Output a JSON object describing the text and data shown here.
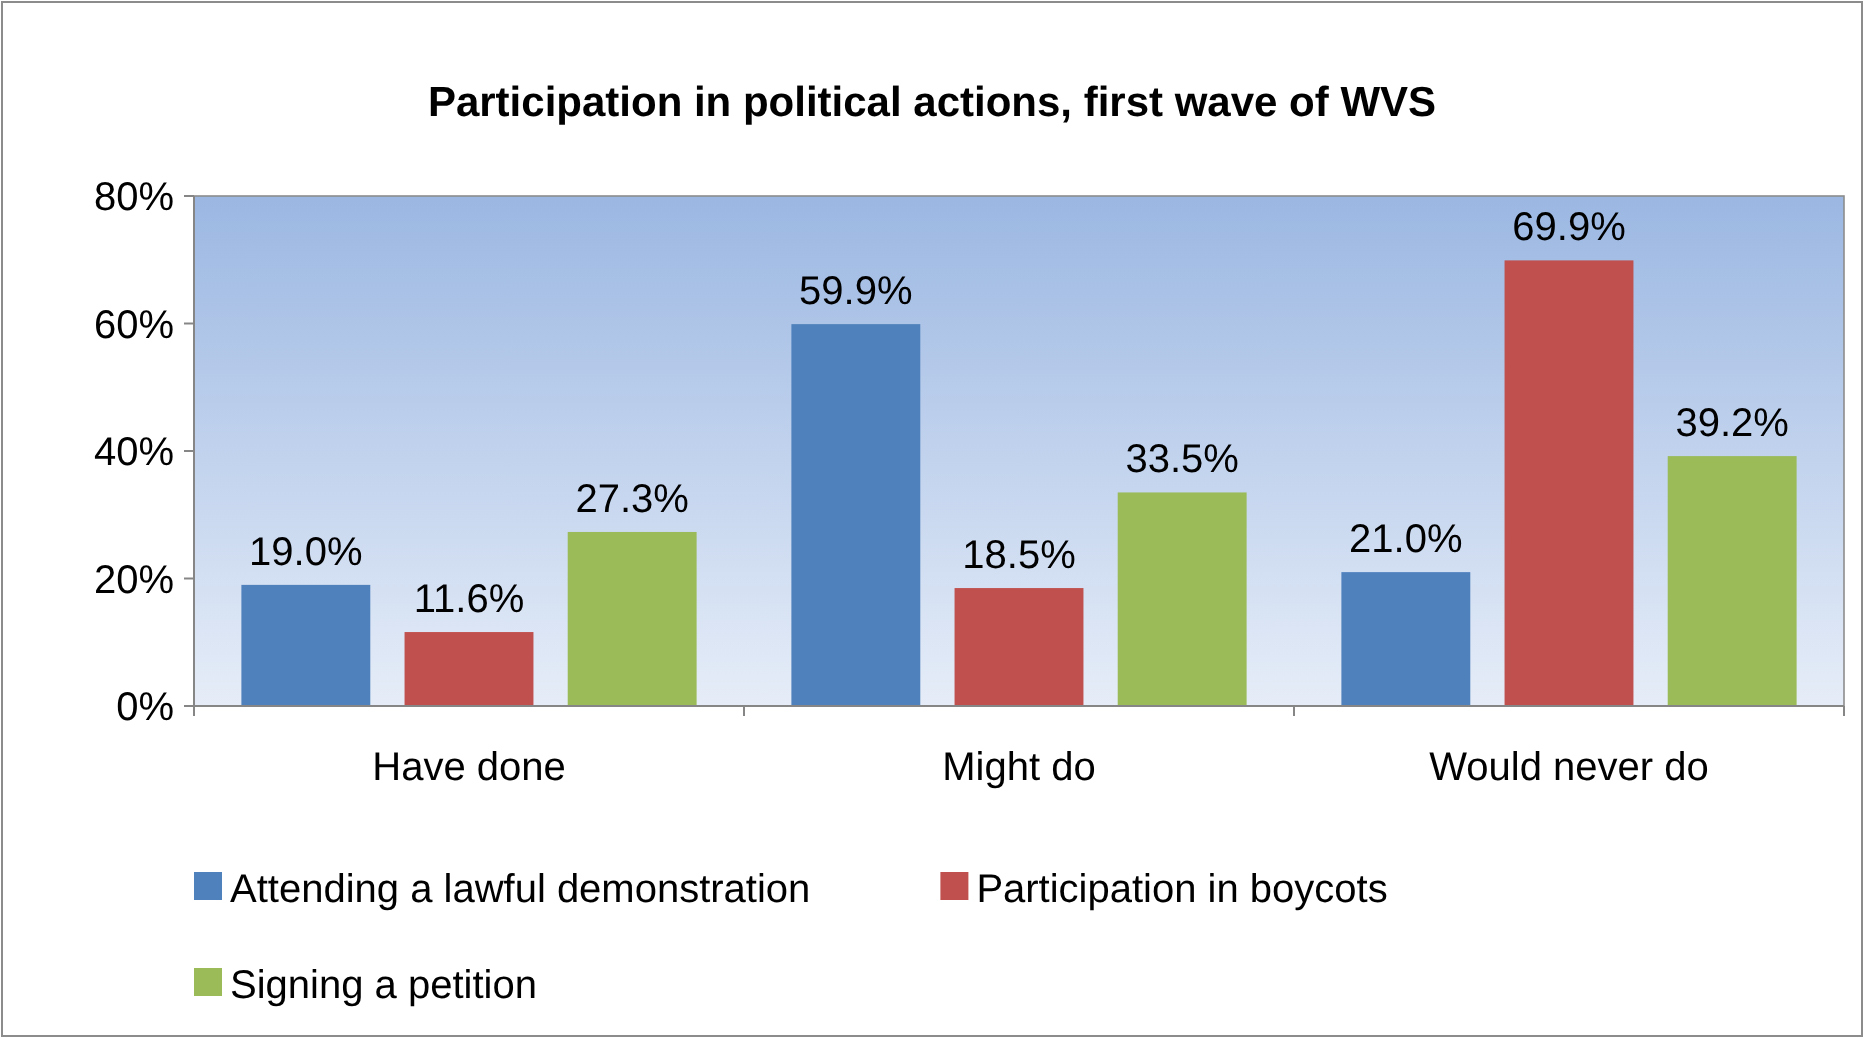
{
  "chart_data": {
    "type": "bar",
    "title": "Participation in political actions, first wave of WVS",
    "categories": [
      "Have done",
      "Might do",
      "Would never do"
    ],
    "series": [
      {
        "name": "Attending a lawful demonstration",
        "color": "#4f81bd",
        "values": [
          19.0,
          59.9,
          21.0
        ],
        "value_labels": [
          "19.0%",
          "59.9%",
          "21.0%"
        ]
      },
      {
        "name": "Participation in boycots",
        "color": "#c0504d",
        "values": [
          11.6,
          18.5,
          69.9
        ],
        "value_labels": [
          "11.6%",
          "18.5%",
          "69.9%"
        ]
      },
      {
        "name": "Signing a petition",
        "color": "#9bbb59",
        "values": [
          27.3,
          33.5,
          39.2
        ],
        "value_labels": [
          "27.3%",
          "33.5%",
          "39.2%"
        ]
      }
    ],
    "ylim": [
      0,
      80
    ],
    "yticks": [
      {
        "value": 0,
        "label": "0%"
      },
      {
        "value": 20,
        "label": "20%"
      },
      {
        "value": 40,
        "label": "40%"
      },
      {
        "value": 60,
        "label": "60%"
      },
      {
        "value": 80,
        "label": "80%"
      }
    ],
    "legend": "bottom"
  }
}
